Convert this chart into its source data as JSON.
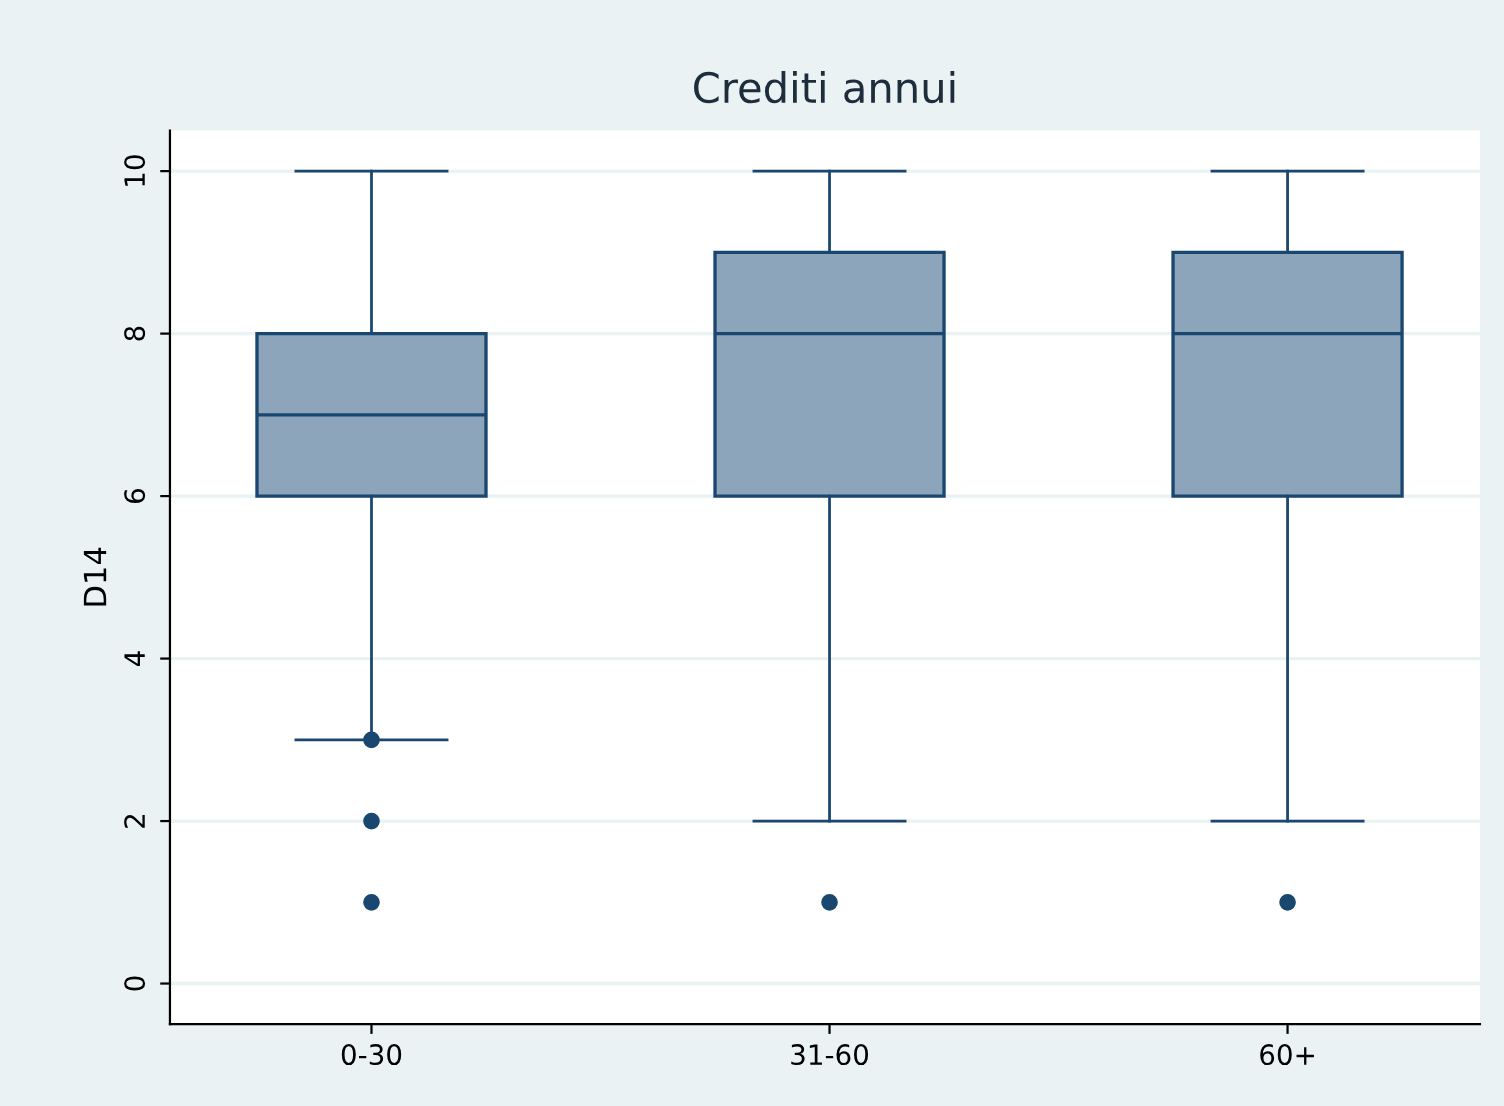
{
  "chart_data": {
    "type": "box",
    "title": "Crediti annui",
    "ylabel": "D14",
    "categories": [
      "0-30",
      "31-60",
      "60+"
    ],
    "boxes": [
      {
        "low": 3,
        "q1": 6,
        "median": 7,
        "q3": 8,
        "high": 10,
        "outliers": [
          3,
          2,
          1
        ]
      },
      {
        "low": 2,
        "q1": 6,
        "median": 8,
        "q3": 9,
        "high": 10,
        "outliers": [
          1
        ]
      },
      {
        "low": 2,
        "q1": 6,
        "median": 8,
        "q3": 9,
        "high": 10,
        "outliers": [
          1
        ]
      }
    ],
    "color": "#8ca5bb",
    "ylim": [
      -0.5,
      10.5
    ],
    "yticks": [
      0,
      2,
      4,
      6,
      8,
      10
    ],
    "grid": "y",
    "legend": false
  }
}
